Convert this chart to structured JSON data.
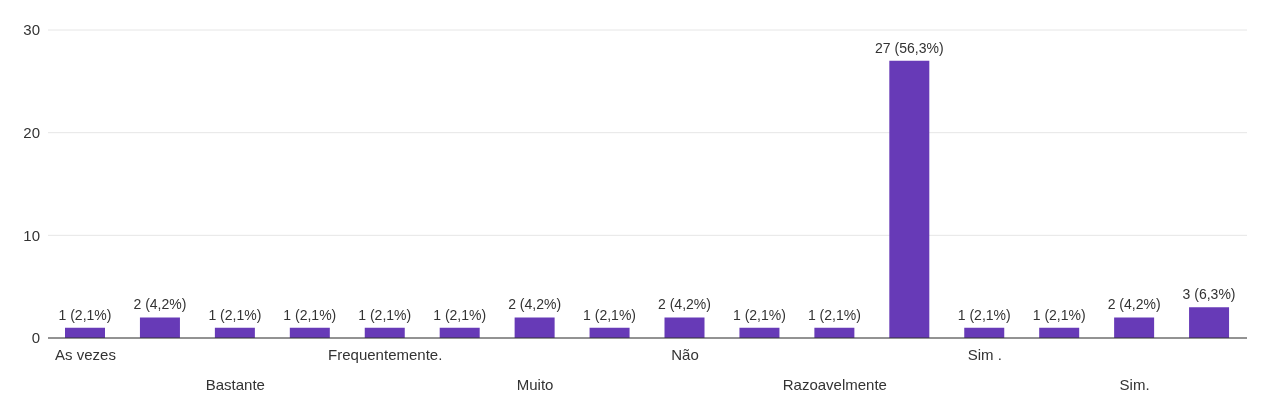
{
  "chart_data": {
    "type": "bar",
    "categories": [
      "As vezes",
      null,
      "Bastante",
      null,
      "Frequentemente.",
      null,
      "Muito",
      null,
      "Não",
      null,
      "Razoavelmente",
      null,
      "Sim .",
      null,
      "Sim.",
      null
    ],
    "values": [
      1,
      2,
      1,
      1,
      1,
      1,
      2,
      1,
      2,
      1,
      1,
      27,
      1,
      1,
      2,
      3
    ],
    "value_labels": [
      "1 (2,1%)",
      "2 (4,2%)",
      "1 (2,1%)",
      "1 (2,1%)",
      "1 (2,1%)",
      "1 (2,1%)",
      "2 (4,2%)",
      "1 (2,1%)",
      "2 (4,2%)",
      "1 (2,1%)",
      "1 (2,1%)",
      "27 (56,3%)",
      "1 (2,1%)",
      "1 (2,1%)",
      "2 (4,2%)",
      "3 (6,3%)"
    ],
    "color": "#673ab7",
    "ylim": [
      0,
      30
    ],
    "yticks": [
      0,
      10,
      20,
      30
    ],
    "grid": "y"
  }
}
